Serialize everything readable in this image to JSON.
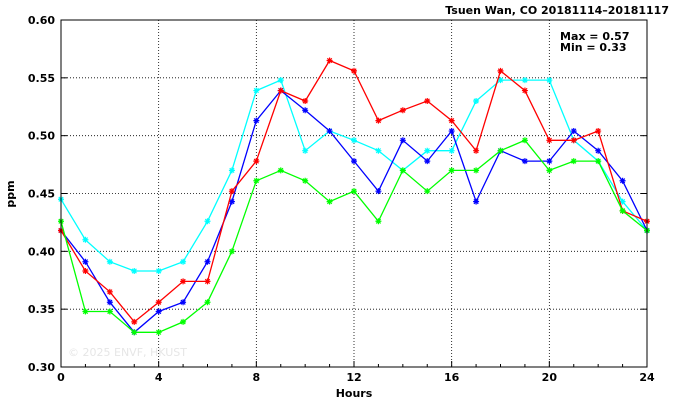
{
  "chart_data": {
    "type": "line",
    "title": "Tsuen Wan, CO 20181114–20181117",
    "xlabel": "Hours",
    "ylabel": "ppm",
    "xlim": [
      0,
      24
    ],
    "ylim": [
      0.3,
      0.6
    ],
    "x_ticks": [
      0,
      4,
      8,
      12,
      16,
      20,
      24
    ],
    "y_ticks": [
      0.3,
      0.35,
      0.4,
      0.45,
      0.5,
      0.55,
      0.6
    ],
    "y_tick_labels": [
      "0.30",
      "0.35",
      "0.40",
      "0.45",
      "0.50",
      "0.55",
      "0.60"
    ],
    "grid": true,
    "annotations": [
      "Max = 0.57",
      "Min = 0.33"
    ],
    "watermark": "© 2025  ENVF, HKUST",
    "x": [
      0,
      1,
      2,
      3,
      4,
      5,
      6,
      7,
      8,
      9,
      10,
      11,
      12,
      13,
      14,
      15,
      16,
      17,
      18,
      19,
      20,
      21,
      22,
      23,
      24
    ],
    "series": [
      {
        "color": "#00ffff",
        "values": [
          0.445,
          0.41,
          0.391,
          0.383,
          0.383,
          0.391,
          0.426,
          0.47,
          0.539,
          0.548,
          0.487,
          0.504,
          0.496,
          0.487,
          0.47,
          0.487,
          0.487,
          0.53,
          0.548,
          0.548,
          0.548,
          0.496,
          0.478,
          0.443,
          0.418
        ]
      },
      {
        "color": "#0000ff",
        "values": [
          0.418,
          0.391,
          0.356,
          0.33,
          0.348,
          0.356,
          0.391,
          0.443,
          0.513,
          0.539,
          0.522,
          0.504,
          0.478,
          0.452,
          0.496,
          0.478,
          0.504,
          0.443,
          0.487,
          0.478,
          0.478,
          0.504,
          0.487,
          0.461,
          0.418
        ]
      },
      {
        "color": "#ff0000",
        "values": [
          0.418,
          0.383,
          0.365,
          0.339,
          0.356,
          0.374,
          0.374,
          0.452,
          0.478,
          0.539,
          0.53,
          0.565,
          0.556,
          0.513,
          0.522,
          0.53,
          0.513,
          0.487,
          0.556,
          0.539,
          0.496,
          0.496,
          0.504,
          0.435,
          0.426
        ]
      },
      {
        "color": "#00ff00",
        "values": [
          0.426,
          0.348,
          0.348,
          0.33,
          0.33,
          0.339,
          0.356,
          0.4,
          0.461,
          0.47,
          0.461,
          0.443,
          0.452,
          0.426,
          0.47,
          0.452,
          0.47,
          0.47,
          0.487,
          0.496,
          0.47,
          0.478,
          0.478,
          0.435,
          0.418
        ]
      }
    ]
  }
}
